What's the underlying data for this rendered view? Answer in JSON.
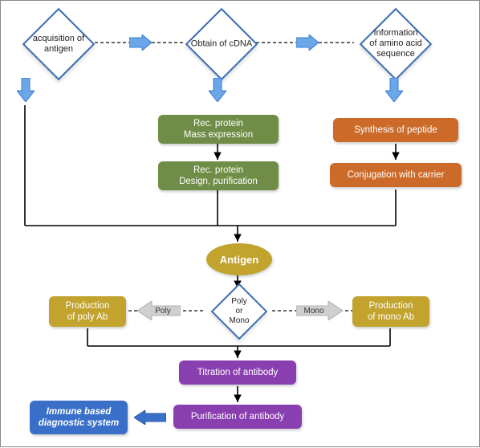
{
  "type": "flowchart",
  "background_color": "#ffffff",
  "frame_border_color": "#888888",
  "diamond_border_color": "#3b6db5",
  "diamond_fill": "#ffffff",
  "text_color": "#222222",
  "label_fontsize": 11,
  "nodes": {
    "d1": {
      "label": "acquisition of\nantigen"
    },
    "d2": {
      "label": "Obtain of cDNA"
    },
    "d3": {
      "label": "Information\nof amino acid\nsequence"
    },
    "g1": {
      "label": "Rec. protein\nMass expression",
      "fill": "#6f8d46"
    },
    "g2": {
      "label": "Rec. protein\nDesign, purification",
      "fill": "#6f8d46"
    },
    "o1": {
      "label": "Synthesis of peptide",
      "fill": "#cc6b29"
    },
    "o2": {
      "label": "Conjugation with carrier",
      "fill": "#cc6b29"
    },
    "antigen": {
      "label": "Antigen",
      "fill": "#c1a32e"
    },
    "dm": {
      "label": "Poly\nor\nMono"
    },
    "y1": {
      "label": "Production\nof poly Ab",
      "fill": "#c1a32e"
    },
    "y2": {
      "label": "Production\nof mono Ab",
      "fill": "#c1a32e"
    },
    "p1": {
      "label": "Titration of antibody",
      "fill": "#8a3fb0"
    },
    "p2": {
      "label": "Purification of antibody",
      "fill": "#8a3fb0"
    },
    "b1": {
      "label": "Immune based\ndiagnostic system",
      "fill": "#3a6fc9"
    }
  },
  "gray_labels": {
    "poly": "Poly",
    "mono": "Mono"
  },
  "arrows": {
    "blue_fill": "#6aa6e8",
    "blue_border": "#3b7ed1",
    "gray_fill": "#cfcfcf",
    "gray_border": "#b0b0b0",
    "line_color": "#000000",
    "dash_color": "#3a3a3a"
  }
}
